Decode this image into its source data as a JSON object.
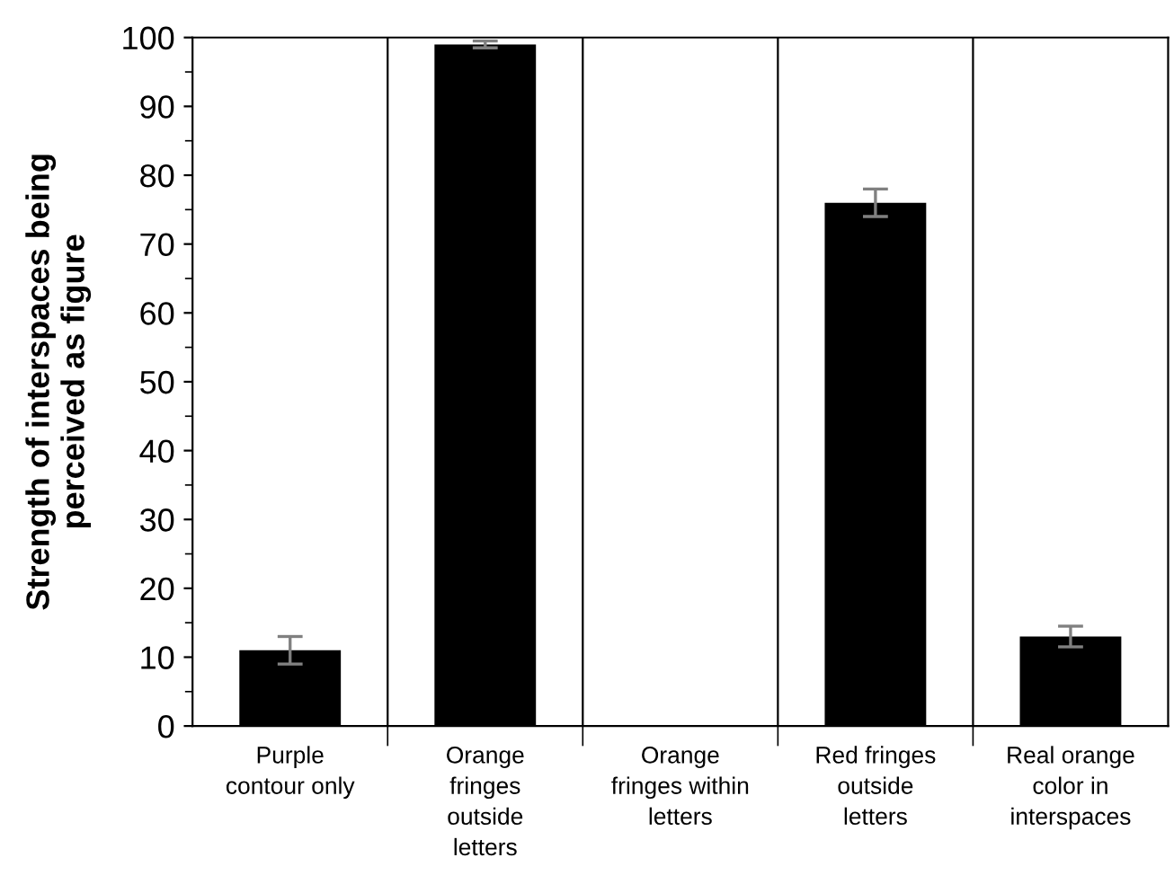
{
  "chart_data": {
    "type": "bar",
    "ylabel": "Strength of interspaces being\nperceived as figure",
    "categories": [
      "Purple\ncontour only",
      "Orange\nfringes\noutside\nletters",
      "Orange\nfringes within\nletters",
      "Red fringes\noutside\nletters",
      "Real orange\ncolor in\ninterspaces"
    ],
    "values": [
      11,
      99,
      0,
      76,
      13
    ],
    "errors": [
      2,
      0.5,
      null,
      2,
      1.5
    ],
    "color": "#000000",
    "ylim": [
      0,
      100
    ],
    "yticks": [
      0,
      10,
      20,
      30,
      40,
      50,
      60,
      70,
      80,
      90,
      100
    ],
    "grid": "x"
  }
}
